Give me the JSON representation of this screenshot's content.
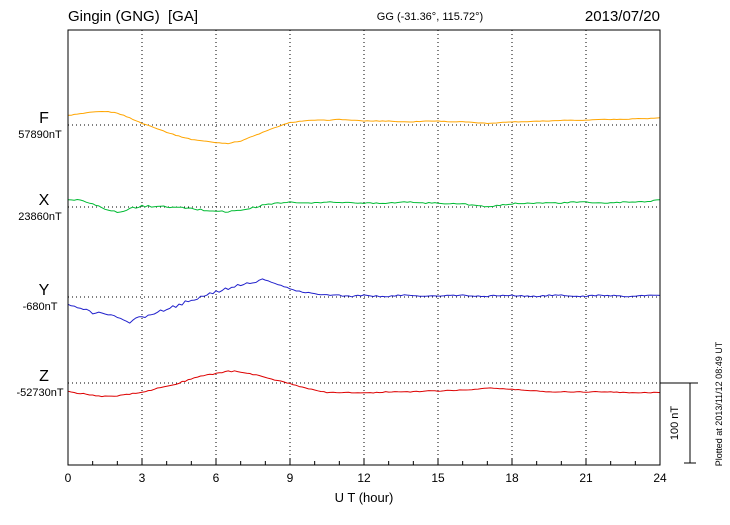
{
  "header": {
    "station": "Gingin (GNG)  [GA]",
    "coords": "GG (-31.36°, 115.72°)",
    "date": "2013/07/20"
  },
  "axes": {
    "x_label": "U T (hour)",
    "x_ticks": [
      "0",
      "3",
      "6",
      "9",
      "12",
      "15",
      "18",
      "21",
      "24"
    ]
  },
  "scale_bar": {
    "label": "100 nT"
  },
  "footer": {
    "plotted_at": "Plotted at 2013/11/12 08:49 UT"
  },
  "chart_data": {
    "type": "line",
    "title": "Gingin (GNG) [GA] magnetogram",
    "subtitle": "GG (-31.36°, 115.72°)",
    "date": "2013/07/20",
    "xlabel": "U T (hour)",
    "x_range": [
      0,
      24
    ],
    "x_tick_step_hours": 3,
    "x_step_hours": 0.5,
    "grid": "dotted vertical every 3 h; dotted horizontal baseline per component",
    "scale_nT_per_division": 100,
    "series": [
      {
        "name": "F",
        "baseline_label": "57890nT",
        "baseline_nT": 57890,
        "color": "#FFA500",
        "noise_nT": [
          0.4,
          0.3
        ],
        "offsets_nT": [
          12,
          14,
          16,
          17,
          15,
          9,
          2,
          -3,
          -9,
          -14,
          -18,
          -20,
          -22,
          -23,
          -20,
          -14,
          -8,
          -2,
          3,
          5,
          6,
          6,
          7,
          6,
          5,
          5,
          5,
          4,
          4,
          5,
          5,
          4,
          4,
          3,
          2,
          3,
          4,
          4,
          5,
          5,
          6,
          6,
          6,
          7,
          7,
          7,
          8,
          8,
          9
        ]
      },
      {
        "name": "X",
        "baseline_label": "23860nT",
        "baseline_nT": 23860,
        "color": "#00BB33",
        "noise_nT": [
          1.2,
          0.7
        ],
        "offsets_nT": [
          10,
          8,
          5,
          -3,
          -7,
          -2,
          1,
          1,
          0,
          -1,
          -2,
          -4,
          -5,
          -6,
          -4,
          -1,
          3,
          5,
          6,
          5,
          5,
          6,
          6,
          5,
          5,
          5,
          5,
          6,
          6,
          5,
          5,
          4,
          4,
          2,
          0,
          2,
          4,
          5,
          5,
          5,
          5,
          6,
          6,
          5,
          5,
          6,
          6,
          7,
          9
        ]
      },
      {
        "name": "Y",
        "baseline_label": "-680nT",
        "baseline_nT": -680,
        "color": "#2222CC",
        "noise_nT": [
          2.2,
          0.8
        ],
        "offsets_nT": [
          -10,
          -15,
          -19,
          -21,
          -26,
          -31,
          -25,
          -21,
          -14,
          -10,
          -4,
          1,
          6,
          11,
          15,
          19,
          21,
          16,
          10,
          6,
          4,
          3,
          2,
          1,
          2,
          1,
          1,
          2,
          2,
          1,
          1,
          2,
          2,
          1,
          1,
          2,
          2,
          1,
          1,
          2,
          2,
          1,
          1,
          2,
          2,
          1,
          1,
          2,
          2
        ]
      },
      {
        "name": "Z",
        "baseline_label": "-52730nT",
        "baseline_nT": -52730,
        "color": "#DD0000",
        "noise_nT": [
          0.8,
          0.5
        ],
        "offsets_nT": [
          -11,
          -13,
          -15,
          -17,
          -16,
          -14,
          -11,
          -8,
          -4,
          0,
          5,
          9,
          12,
          15,
          14,
          11,
          7,
          3,
          -1,
          -5,
          -9,
          -12,
          -12,
          -12,
          -12,
          -12,
          -11,
          -11,
          -11,
          -10,
          -10,
          -9,
          -9,
          -8,
          -6,
          -7,
          -8,
          -9,
          -10,
          -11,
          -11,
          -11,
          -11,
          -11,
          -11,
          -12,
          -12,
          -12,
          -12
        ]
      }
    ]
  }
}
